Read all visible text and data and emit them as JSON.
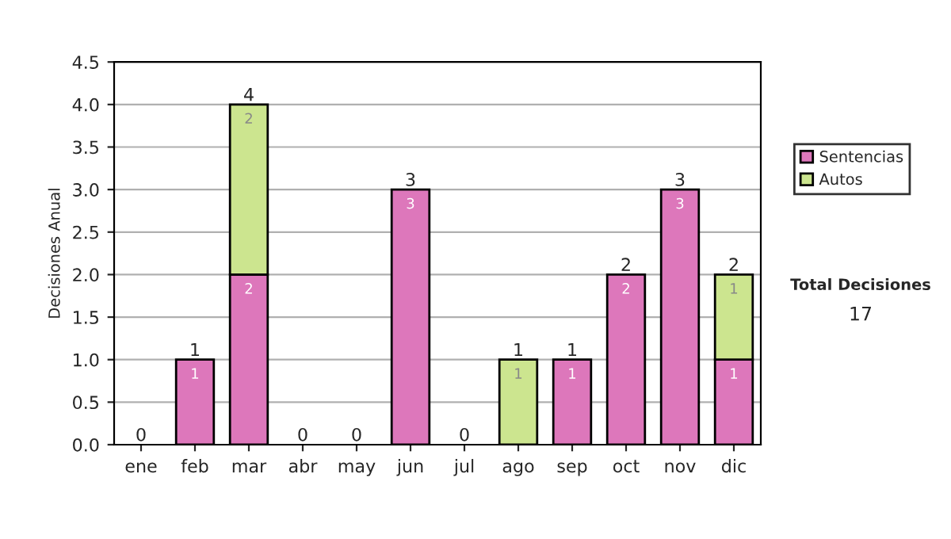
{
  "chart_data": {
    "type": "bar",
    "stacked": true,
    "ylabel": "Decisiones Anual",
    "categories": [
      "ene",
      "feb",
      "mar",
      "abr",
      "may",
      "jun",
      "jul",
      "ago",
      "sep",
      "oct",
      "nov",
      "dic"
    ],
    "series": [
      {
        "name": "Sentencias",
        "color": "#dd77bb",
        "values": [
          0,
          1,
          2,
          0,
          0,
          3,
          0,
          0,
          1,
          2,
          3,
          1
        ],
        "value_labels": [
          null,
          "1",
          "2",
          null,
          null,
          "3",
          null,
          null,
          "1",
          "2",
          "3",
          "1"
        ]
      },
      {
        "name": "Autos",
        "color": "#cce58f",
        "values": [
          0,
          0,
          2,
          0,
          0,
          0,
          0,
          1,
          0,
          0,
          0,
          1
        ],
        "value_labels": [
          null,
          null,
          "2",
          null,
          null,
          null,
          null,
          "1",
          null,
          null,
          null,
          "1"
        ]
      }
    ],
    "totals": [
      "0",
      "1",
      "4",
      "0",
      "0",
      "3",
      "0",
      "1",
      "1",
      "2",
      "3",
      "2"
    ],
    "ylim": [
      0,
      4.5
    ],
    "yticks": [
      {
        "value": 0,
        "label": "0.0"
      },
      {
        "value": 0.5,
        "label": "0.5"
      },
      {
        "value": 1,
        "label": "1.0"
      },
      {
        "value": 1.5,
        "label": "1.5"
      },
      {
        "value": 2,
        "label": "2.0"
      },
      {
        "value": 2.5,
        "label": "2.5"
      },
      {
        "value": 3,
        "label": "3.0"
      },
      {
        "value": 3.5,
        "label": "3.5"
      },
      {
        "value": 4,
        "label": "4.0"
      },
      {
        "value": 4.5,
        "label": "4.5"
      }
    ],
    "grid": "y",
    "legend": "right",
    "annotations": [
      "Total Decisiones",
      "17"
    ]
  }
}
